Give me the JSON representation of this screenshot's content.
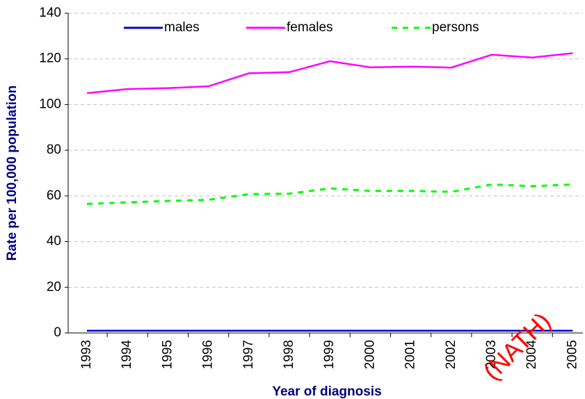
{
  "chart_data": {
    "type": "line",
    "ylabel": "Rate per 100,000 population",
    "xlabel": "Year of diagnosis",
    "annotation": "(NATH)",
    "categories": [
      "1993",
      "1994",
      "1995",
      "1996",
      "1997",
      "1998",
      "1999",
      "2000",
      "2001",
      "2002",
      "2003",
      "2004",
      "2005"
    ],
    "series": [
      {
        "name": "males",
        "color": "#0000cc",
        "dash": false,
        "values": [
          1,
          1,
          1,
          1,
          1,
          1,
          1,
          1,
          1,
          1,
          1,
          1,
          1
        ]
      },
      {
        "name": "females",
        "color": "#ff00ff",
        "dash": false,
        "values": [
          105,
          106.8,
          107.2,
          108,
          113.7,
          114.2,
          119,
          116.3,
          116.6,
          116.2,
          121.8,
          120.6,
          122.5
        ]
      },
      {
        "name": "persons",
        "color": "#00ff00",
        "dash": true,
        "values": [
          56.5,
          57.2,
          57.8,
          58.3,
          60.8,
          61,
          63.3,
          62.2,
          62.2,
          61.8,
          65,
          64.3,
          65
        ]
      }
    ],
    "ylim": [
      0,
      140
    ],
    "yticks": [
      0,
      20,
      40,
      60,
      80,
      100,
      120,
      140
    ],
    "grid": true
  }
}
